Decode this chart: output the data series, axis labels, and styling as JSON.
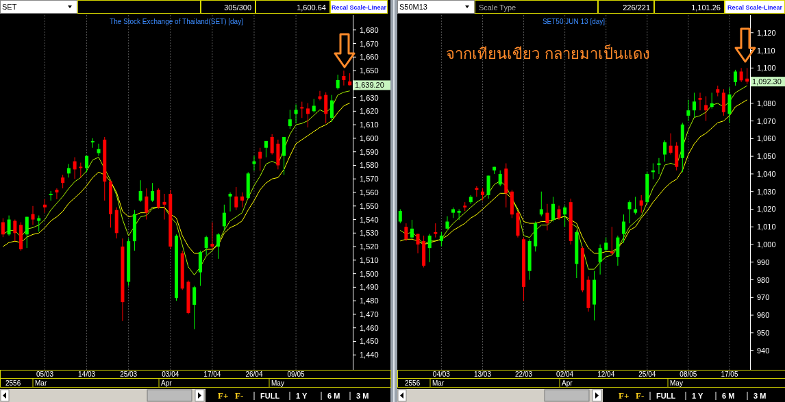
{
  "chart_data": [
    {
      "type": "candlestick",
      "title": "The Stock Exchange of Thailand(SET) [day]",
      "grid": "x",
      "categories": [
        null,
        null,
        null,
        null,
        null,
        null,
        null,
        "05/03",
        null,
        null,
        null,
        null,
        null,
        null,
        "14/03",
        null,
        null,
        null,
        null,
        null,
        null,
        "25/03",
        null,
        null,
        null,
        null,
        null,
        null,
        "03/04",
        null,
        null,
        null,
        null,
        null,
        null,
        "17/04",
        null,
        null,
        null,
        null,
        null,
        null,
        "26/04",
        null,
        null,
        null,
        null,
        null,
        null,
        "09/05",
        null,
        null,
        null,
        null,
        null,
        null,
        null,
        null,
        null
      ],
      "ohlc": [
        [
          1538,
          1541,
          1527,
          1529
        ],
        [
          1529,
          1543,
          1528,
          1540
        ],
        [
          1539,
          1540,
          1524,
          1530
        ],
        [
          1536,
          1538,
          1517,
          1518
        ],
        [
          1529,
          1542,
          1519,
          1542
        ],
        [
          1544,
          1550,
          1536,
          1540
        ],
        [
          1539,
          1543,
          1531,
          1541
        ],
        [
          1551,
          1555,
          1545,
          1549
        ],
        [
          1558,
          1561,
          1554,
          1559
        ],
        [
          1562,
          1563,
          1555,
          1560
        ],
        [
          1571,
          1573,
          1563,
          1567
        ],
        [
          1574,
          1581,
          1571,
          1578
        ],
        [
          1583,
          1586,
          1570,
          1577
        ],
        [
          1579,
          1582,
          1571,
          1578
        ],
        [
          1578,
          1587,
          1575,
          1587
        ],
        [
          1597,
          1600,
          1593,
          1598
        ],
        [
          1589,
          1596,
          1587,
          1592
        ],
        [
          1599,
          1601,
          1554,
          1568
        ],
        [
          1568,
          1569,
          1534,
          1544
        ],
        [
          1547,
          1549,
          1526,
          1530
        ],
        [
          1520,
          1526,
          1465,
          1479
        ],
        [
          1494,
          1526,
          1491,
          1524
        ],
        [
          1524,
          1547,
          1517,
          1544
        ],
        [
          1554,
          1569,
          1553,
          1561
        ],
        [
          1557,
          1563,
          1540,
          1545
        ],
        [
          1554,
          1567,
          1553,
          1561
        ],
        [
          1562,
          1563,
          1548,
          1549
        ],
        [
          1553,
          1559,
          1540,
          1551
        ],
        [
          1559,
          1562,
          1518,
          1520
        ],
        [
          1482,
          1529,
          1480,
          1528
        ],
        [
          1515,
          1517,
          1488,
          1489
        ],
        [
          1494,
          1495,
          1470,
          1471
        ],
        [
          1477,
          1491,
          1459,
          1490
        ],
        [
          1501,
          1517,
          1491,
          1516
        ],
        [
          1519,
          1528,
          1514,
          1527
        ],
        [
          1522,
          1538,
          1518,
          1520
        ],
        [
          1520,
          1530,
          1511,
          1529
        ],
        [
          1535,
          1551,
          1532,
          1545
        ],
        [
          1557,
          1560,
          1546,
          1559
        ],
        [
          1557,
          1564,
          1547,
          1549
        ],
        [
          1557,
          1560,
          1549,
          1554
        ],
        [
          1556,
          1575,
          1555,
          1574
        ],
        [
          1581,
          1587,
          1576,
          1583
        ],
        [
          1590,
          1593,
          1576,
          1585
        ],
        [
          1593,
          1598,
          1586,
          1598
        ],
        [
          1601,
          1603,
          1588,
          1589
        ],
        [
          1596,
          1599,
          1577,
          1580
        ],
        [
          1587,
          1601,
          1573,
          1601
        ],
        [
          1609,
          1621,
          1607,
          1614
        ],
        [
          1618,
          1625,
          1611,
          1621
        ],
        [
          1623,
          1627,
          1615,
          1622
        ],
        [
          1622,
          1626,
          1608,
          1618
        ],
        [
          1620,
          1629,
          1619,
          1624
        ],
        [
          1631,
          1635,
          1628,
          1629
        ],
        [
          1632,
          1634,
          1611,
          1618
        ],
        [
          1615,
          1632,
          1612,
          1628
        ],
        [
          1637,
          1647,
          1636,
          1643
        ],
        [
          1646,
          1650,
          1639,
          1643
        ],
        [
          1642,
          1648,
          1639,
          1639.2
        ]
      ],
      "series": [
        {
          "type": "line",
          "color": "#a6f000",
          "values": [
            1529,
            1532,
            1532,
            1527,
            1533,
            1534,
            1536,
            1540,
            1547,
            1552,
            1557,
            1563,
            1568,
            1571,
            1576,
            1584,
            1586,
            null,
            1569,
            1558,
            1540,
            1528,
            null,
            1542,
            1543,
            1548,
            1549,
            1549,
            1542,
            1537,
            null,
            1505,
            1499,
            1505,
            1513,
            1517,
            1523,
            1532,
            1539,
            1542,
            1545,
            1556,
            1565,
            1572,
            1581,
            1583,
            1581,
            null,
            1603,
            1610,
            1611,
            1613,
            1617,
            1621,
            1619,
            1623,
            1632,
            1634,
            1635
          ]
        },
        {
          "type": "line",
          "color": "#ffff00",
          "values": [
            1520,
            1523,
            1524,
            1523,
            1527,
            1529,
            1530,
            1534,
            1539,
            1542,
            1546,
            1552,
            1556,
            1560,
            1565,
            1571,
            1575,
            1573,
            1568,
            1560,
            1546,
            1542,
            1543,
            1545,
            1545,
            1549,
            1549,
            1549,
            1544,
            1541,
            1528,
            1520,
            1515,
            1515,
            1518,
            1518,
            1521,
            1530,
            1534,
            1536,
            1539,
            1547,
            1554,
            1562,
            1567,
            1570,
            1571,
            1577,
            1587,
            1596,
            1599,
            1602,
            1605,
            1608,
            1610,
            1613,
            1619,
            1624,
            1626
          ]
        }
      ],
      "ylim": [
        1429,
        1691
      ],
      "yticks": [
        {
          "value": 1440,
          "label": "1,440"
        },
        {
          "value": 1450,
          "label": "1,450"
        },
        {
          "value": 1460,
          "label": "1,460"
        },
        {
          "value": 1470,
          "label": "1,470"
        },
        {
          "value": 1480,
          "label": "1,480"
        },
        {
          "value": 1490,
          "label": "1,490"
        },
        {
          "value": 1500,
          "label": "1,500"
        },
        {
          "value": 1510,
          "label": "1,510"
        },
        {
          "value": 1520,
          "label": "1,520"
        },
        {
          "value": 1530,
          "label": "1,530"
        },
        {
          "value": 1540,
          "label": "1,540"
        },
        {
          "value": 1550,
          "label": "1,550"
        },
        {
          "value": 1560,
          "label": "1,560"
        },
        {
          "value": 1570,
          "label": "1,570"
        },
        {
          "value": 1580,
          "label": "1,580"
        },
        {
          "value": 1590,
          "label": "1,590"
        },
        {
          "value": 1600,
          "label": "1,600"
        },
        {
          "value": 1610,
          "label": "1,610"
        },
        {
          "value": 1620,
          "label": "1,620"
        },
        {
          "value": 1630,
          "label": "1,630"
        },
        {
          "value": 1640,
          "label": null
        },
        {
          "value": 1650,
          "label": "1,650"
        },
        {
          "value": 1660,
          "label": "1,660"
        },
        {
          "value": 1670,
          "label": "1,670"
        },
        {
          "value": 1680,
          "label": "1,680"
        }
      ],
      "annotations": [
        "SET",
        "305/300",
        "1,600.64",
        "Recal Scale-Linear",
        "1,639.20",
        "2556",
        "Mar",
        "Apr",
        "May",
        "F+",
        "F-",
        "FULL",
        "1 Y",
        "6 M",
        "3 M"
      ]
    },
    {
      "type": "candlestick",
      "title": "SET50 JUN 13  [day]",
      "grid": "x",
      "categories": [
        null,
        null,
        null,
        null,
        null,
        null,
        null,
        "04/03",
        null,
        null,
        null,
        null,
        null,
        null,
        "13/03",
        null,
        null,
        null,
        null,
        null,
        null,
        "22/03",
        null,
        null,
        null,
        null,
        null,
        null,
        "02/04",
        null,
        null,
        null,
        null,
        null,
        null,
        "12/04",
        null,
        null,
        null,
        null,
        null,
        null,
        "25/04",
        null,
        null,
        null,
        null,
        null,
        null,
        "08/05",
        null,
        null,
        null,
        null,
        null,
        null,
        "17/05",
        null,
        null,
        null
      ],
      "ohlc": [
        [
          1013,
          1020,
          1012,
          1019
        ],
        [
          1010,
          1012,
          1002,
          1003
        ],
        [
          1004,
          1014,
          1003,
          1009
        ],
        [
          1006,
          1006,
          995,
          1000
        ],
        [
          1002,
          1005,
          987,
          988
        ],
        [
          998,
          1006,
          990,
          1005
        ],
        [
          1007,
          1012,
          1004,
          1006
        ],
        [
          1002,
          1007,
          999,
          1005
        ],
        [
          1009,
          1016,
          1009,
          1013
        ],
        [
          1018,
          1021,
          1015,
          1020
        ],
        [
          1018,
          1020,
          1014,
          1019
        ],
        [
          1022,
          1024,
          1019,
          1021
        ],
        [
          1024,
          1028,
          1023,
          1027
        ],
        [
          1032,
          1033,
          1027,
          1031
        ],
        [
          1030,
          1032,
          1025,
          1028
        ],
        [
          1028,
          1039,
          1026,
          1039
        ],
        [
          1042,
          1044,
          1040,
          1044
        ],
        [
          1034,
          1042,
          1033,
          1040
        ],
        [
          1043,
          1046,
          1021,
          1029
        ],
        [
          1030,
          1031,
          1015,
          1017
        ],
        [
          1018,
          1019,
          1004,
          1005
        ],
        [
          1003,
          1004,
          968,
          976
        ],
        [
          985,
          1003,
          980,
          1002
        ],
        [
          999,
          1013,
          996,
          1012
        ],
        [
          1017,
          1030,
          1016,
          1020
        ],
        [
          1018,
          1023,
          1008,
          1012
        ],
        [
          1014,
          1027,
          1013,
          1023
        ],
        [
          1020,
          1022,
          1014,
          1015
        ],
        [
          1017,
          1022,
          1010,
          1021
        ],
        [
          1024,
          1026,
          1000,
          1002
        ],
        [
          989,
          1008,
          981,
          1007
        ],
        [
          998,
          999,
          973,
          974
        ],
        [
          980,
          982,
          962,
          964
        ],
        [
          966,
          985,
          957,
          980
        ],
        [
          990,
          1000,
          983,
          998
        ],
        [
          997,
          1004,
          996,
          1001
        ],
        [
          996,
          1010,
          994,
          995
        ],
        [
          993,
          1005,
          988,
          1004
        ],
        [
          1006,
          1017,
          1001,
          1013
        ],
        [
          1020,
          1025,
          1012,
          1024
        ],
        [
          1018,
          1027,
          1017,
          1020
        ],
        [
          1025,
          1028,
          1018,
          1022
        ],
        [
          1024,
          1041,
          1023,
          1040
        ],
        [
          1041,
          1046,
          1037,
          1042
        ],
        [
          1045,
          1049,
          1040,
          1046
        ],
        [
          1051,
          1059,
          1047,
          1058
        ],
        [
          1056,
          1063,
          1051,
          1052
        ],
        [
          1056,
          1058,
          1042,
          1044
        ],
        [
          1049,
          1069,
          1041,
          1068
        ],
        [
          1073,
          1082,
          1070,
          1076
        ],
        [
          1076,
          1086,
          1072,
          1081
        ],
        [
          1083,
          1086,
          1076,
          1082
        ],
        [
          1079,
          1084,
          1070,
          1076
        ],
        [
          1078,
          1086,
          1077,
          1080
        ],
        [
          1088,
          1090,
          1084,
          1086
        ],
        [
          1086,
          1088,
          1073,
          1075
        ],
        [
          1074,
          1089,
          1069,
          1085
        ],
        [
          1092,
          1099,
          1090,
          1098
        ],
        [
          1098,
          1100,
          1092,
          1093
        ],
        [
          1094,
          1100,
          1091,
          1092.3
        ]
      ],
      "series": [
        {
          "type": "line",
          "color": "#a6f000",
          "values": [
            1008,
            1006,
            1007,
            1004,
            1000,
            1002,
            1002,
            1003,
            1008,
            1012,
            1015,
            1018,
            1021,
            1024,
            1026,
            1029,
            1034,
            1036,
            1033,
            null,
            1019,
            1005,
            1004,
            1008,
            1011,
            1011,
            1014,
            1015,
            1016,
            1012,
            1010,
            998,
            986,
            986,
            990,
            993,
            994,
            998,
            1004,
            1010,
            1013,
            1016,
            1024,
            1032,
            1037,
            1045,
            1046,
            1045,
            null,
            1065,
            1072,
            1073,
            1075,
            1079,
            1080,
            1078,
            1081,
            1086,
            1088,
            1090
          ]
        },
        {
          "type": "line",
          "color": "#ffff00",
          "values": [
            1002,
            1003,
            1003,
            1002,
            1000,
            1001,
            1002,
            1003,
            1005,
            1008,
            1010,
            1012,
            1015,
            1017,
            1020,
            1023,
            1026,
            1029,
            1029,
            1026,
            1020,
            1013,
            1012,
            1012,
            1013,
            1013,
            1014,
            1015,
            1016,
            1014,
            1012,
            1004,
            998,
            995,
            995,
            996,
            996,
            998,
            1002,
            1008,
            1010,
            1015,
            1019,
            1024,
            1028,
            1032,
            1035,
            1037,
            1042,
            1051,
            1057,
            1061,
            1063,
            1066,
            1069,
            1070,
            1073,
            1078,
            1080,
            1082
          ]
        }
      ],
      "ylim": [
        929,
        1130
      ],
      "yticks": [
        940,
        950,
        960,
        970,
        980,
        990,
        {
          "value": 1000,
          "label": "1,000"
        },
        {
          "value": 1010,
          "label": "1,010"
        },
        {
          "value": 1020,
          "label": "1,020"
        },
        {
          "value": 1030,
          "label": "1,030"
        },
        {
          "value": 1040,
          "label": "1,040"
        },
        {
          "value": 1050,
          "label": "1,050"
        },
        {
          "value": 1060,
          "label": "1,060"
        },
        {
          "value": 1070,
          "label": "1,070"
        },
        {
          "value": 1080,
          "label": "1,080"
        },
        {
          "value": 1090,
          "label": null
        },
        {
          "value": 1100,
          "label": "1,100"
        },
        {
          "value": 1110,
          "label": "1,110"
        },
        {
          "value": 1120,
          "label": "1,120"
        }
      ],
      "annotations": [
        "S50M13",
        "Scale Type",
        "226/221",
        "1,101.26",
        "Recal Scale-Linear",
        "1,092.30",
        "จากเทียนเขียว กลายมาเป็นแดง",
        "2556",
        "Mar",
        "Apr",
        "May",
        "F+",
        "F-",
        "FULL",
        "1 Y",
        "6 M",
        "3 M"
      ]
    }
  ]
}
